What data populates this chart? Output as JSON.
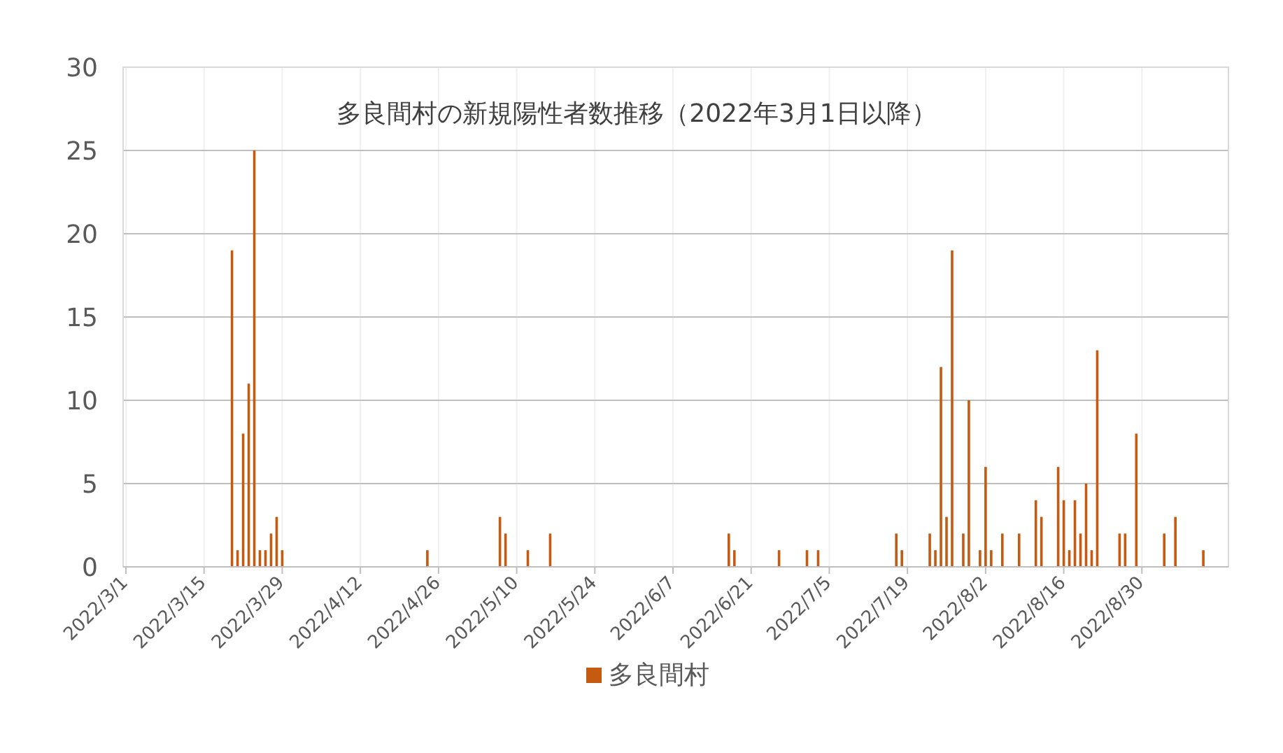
{
  "chart_data": {
    "type": "bar",
    "title": "多良間村の新規陽性者数推移（2022年3月1日以降）",
    "x": [
      "2022-03-20",
      "2022-03-21",
      "2022-03-22",
      "2022-03-23",
      "2022-03-24",
      "2022-03-25",
      "2022-03-26",
      "2022-03-27",
      "2022-03-28",
      "2022-03-29",
      "2022-04-24",
      "2022-05-07",
      "2022-05-08",
      "2022-05-12",
      "2022-05-16",
      "2022-06-17",
      "2022-06-18",
      "2022-06-26",
      "2022-07-01",
      "2022-07-03",
      "2022-07-17",
      "2022-07-18",
      "2022-07-23",
      "2022-07-24",
      "2022-07-25",
      "2022-07-26",
      "2022-07-27",
      "2022-07-29",
      "2022-07-30",
      "2022-08-01",
      "2022-08-02",
      "2022-08-03",
      "2022-08-05",
      "2022-08-08",
      "2022-08-11",
      "2022-08-12",
      "2022-08-15",
      "2022-08-16",
      "2022-08-17",
      "2022-08-18",
      "2022-08-19",
      "2022-08-20",
      "2022-08-21",
      "2022-08-22",
      "2022-08-26",
      "2022-08-27",
      "2022-08-29",
      "2022-09-03",
      "2022-09-05",
      "2022-09-10"
    ],
    "series": [
      {
        "name": "多良間村",
        "color": "#c55a11",
        "values": [
          19,
          1,
          8,
          11,
          25,
          1,
          1,
          2,
          3,
          1,
          1,
          3,
          2,
          1,
          2,
          2,
          1,
          1,
          1,
          1,
          2,
          1,
          2,
          1,
          12,
          3,
          19,
          2,
          10,
          1,
          6,
          1,
          2,
          2,
          4,
          3,
          6,
          4,
          1,
          4,
          2,
          5,
          1,
          13,
          2,
          2,
          8,
          2,
          3,
          1
        ]
      }
    ],
    "xlim": [
      "2022-02-28T12:00",
      "2022-09-14T12:00"
    ],
    "xticks": [
      {
        "value": "2022-03-01",
        "label": "2022/3/1"
      },
      {
        "value": "2022-03-15",
        "label": "2022/3/15"
      },
      {
        "value": "2022-03-29",
        "label": "2022/3/29"
      },
      {
        "value": "2022-04-12",
        "label": "2022/4/12"
      },
      {
        "value": "2022-04-26",
        "label": "2022/4/26"
      },
      {
        "value": "2022-05-10",
        "label": "2022/5/10"
      },
      {
        "value": "2022-05-24",
        "label": "2022/5/24"
      },
      {
        "value": "2022-06-07",
        "label": "2022/6/7"
      },
      {
        "value": "2022-06-21",
        "label": "2022/6/21"
      },
      {
        "value": "2022-07-05",
        "label": "2022/7/5"
      },
      {
        "value": "2022-07-19",
        "label": "2022/7/19"
      },
      {
        "value": "2022-08-02",
        "label": "2022/8/2"
      },
      {
        "value": "2022-08-16",
        "label": "2022/8/16"
      },
      {
        "value": "2022-08-30",
        "label": "2022/8/30"
      }
    ],
    "ylim": [
      0,
      30
    ],
    "yticks": [
      0,
      5,
      10,
      15,
      20,
      25,
      30
    ],
    "grid": true,
    "legend": "bottom"
  }
}
